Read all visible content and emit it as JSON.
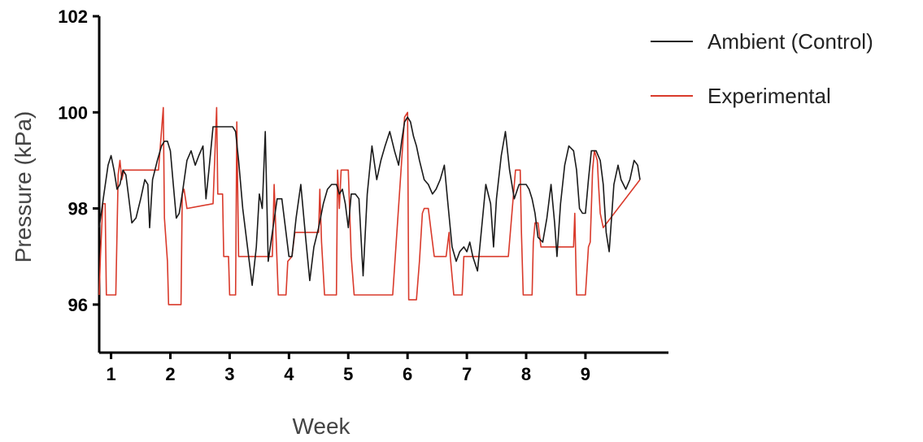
{
  "chart_data": {
    "type": "line",
    "xlabel": "Week",
    "ylabel": "Pressure (kPa)",
    "ylim": [
      95,
      102
    ],
    "xlim": [
      0.8,
      10.4
    ],
    "yticks": [
      96,
      98,
      100,
      102
    ],
    "xticks": [
      {
        "value": 1,
        "label": "1"
      },
      {
        "value": 2,
        "label": "2"
      },
      {
        "value": 3,
        "label": "3"
      },
      {
        "value": 4,
        "label": "4"
      },
      {
        "value": 5,
        "label": "5"
      },
      {
        "value": 6,
        "label": "6"
      },
      {
        "value": 7,
        "label": "7"
      },
      {
        "value": 8,
        "label": "8"
      },
      {
        "value": 9,
        "label": "9"
      }
    ],
    "grid": false,
    "legend_position": "top-right",
    "series": [
      {
        "name": "Ambient (Control)",
        "color": "#1a1a1a",
        "points": [
          [
            0.8,
            97.6
          ],
          [
            0.88,
            98.3
          ],
          [
            0.95,
            98.9
          ],
          [
            1.0,
            99.1
          ],
          [
            1.05,
            98.8
          ],
          [
            1.1,
            98.4
          ],
          [
            1.15,
            98.5
          ],
          [
            1.2,
            98.8
          ],
          [
            1.25,
            98.7
          ],
          [
            1.3,
            98.2
          ],
          [
            1.35,
            97.7
          ],
          [
            1.42,
            97.8
          ],
          [
            1.5,
            98.2
          ],
          [
            1.57,
            98.6
          ],
          [
            1.62,
            98.5
          ],
          [
            1.65,
            97.6
          ],
          [
            1.7,
            98.6
          ],
          [
            1.78,
            99.0
          ],
          [
            1.85,
            99.3
          ],
          [
            1.9,
            99.4
          ],
          [
            1.95,
            99.4
          ],
          [
            2.0,
            99.2
          ],
          [
            2.05,
            98.5
          ],
          [
            2.1,
            97.8
          ],
          [
            2.15,
            97.9
          ],
          [
            2.2,
            98.3
          ],
          [
            2.28,
            99.0
          ],
          [
            2.35,
            99.2
          ],
          [
            2.42,
            98.9
          ],
          [
            2.48,
            99.1
          ],
          [
            2.55,
            99.3
          ],
          [
            2.6,
            98.2
          ],
          [
            2.65,
            98.8
          ],
          [
            2.72,
            99.7
          ],
          [
            2.8,
            99.7
          ],
          [
            2.9,
            99.7
          ],
          [
            3.0,
            99.7
          ],
          [
            3.05,
            99.7
          ],
          [
            3.1,
            99.6
          ],
          [
            3.15,
            99.0
          ],
          [
            3.22,
            98.0
          ],
          [
            3.3,
            97.2
          ],
          [
            3.38,
            96.4
          ],
          [
            3.45,
            97.2
          ],
          [
            3.5,
            98.3
          ],
          [
            3.55,
            98.0
          ],
          [
            3.6,
            99.6
          ],
          [
            3.65,
            96.9
          ],
          [
            3.72,
            97.5
          ],
          [
            3.8,
            98.2
          ],
          [
            3.88,
            98.2
          ],
          [
            3.95,
            97.5
          ],
          [
            4.0,
            97.0
          ],
          [
            4.05,
            97.0
          ],
          [
            4.12,
            97.8
          ],
          [
            4.2,
            98.5
          ],
          [
            4.28,
            97.4
          ],
          [
            4.35,
            96.5
          ],
          [
            4.42,
            97.2
          ],
          [
            4.5,
            97.6
          ],
          [
            4.58,
            98.1
          ],
          [
            4.65,
            98.4
          ],
          [
            4.72,
            98.5
          ],
          [
            4.8,
            98.5
          ],
          [
            4.85,
            98.3
          ],
          [
            4.9,
            98.4
          ],
          [
            4.95,
            98.1
          ],
          [
            5.0,
            97.6
          ],
          [
            5.05,
            98.3
          ],
          [
            5.12,
            98.3
          ],
          [
            5.18,
            98.2
          ],
          [
            5.25,
            96.6
          ],
          [
            5.32,
            98.3
          ],
          [
            5.4,
            99.3
          ],
          [
            5.48,
            98.6
          ],
          [
            5.55,
            99.0
          ],
          [
            5.62,
            99.3
          ],
          [
            5.7,
            99.6
          ],
          [
            5.78,
            99.2
          ],
          [
            5.85,
            98.9
          ],
          [
            5.9,
            99.4
          ],
          [
            5.95,
            99.8
          ],
          [
            6.0,
            99.9
          ],
          [
            6.05,
            99.8
          ],
          [
            6.1,
            99.5
          ],
          [
            6.15,
            99.3
          ],
          [
            6.2,
            99.0
          ],
          [
            6.28,
            98.6
          ],
          [
            6.35,
            98.5
          ],
          [
            6.42,
            98.3
          ],
          [
            6.48,
            98.4
          ],
          [
            6.55,
            98.6
          ],
          [
            6.62,
            98.9
          ],
          [
            6.68,
            98.1
          ],
          [
            6.75,
            97.2
          ],
          [
            6.82,
            96.9
          ],
          [
            6.88,
            97.1
          ],
          [
            6.95,
            97.2
          ],
          [
            7.0,
            97.1
          ],
          [
            7.05,
            97.3
          ],
          [
            7.1,
            97.0
          ],
          [
            7.18,
            96.7
          ],
          [
            7.25,
            97.6
          ],
          [
            7.32,
            98.5
          ],
          [
            7.4,
            98.1
          ],
          [
            7.45,
            97.2
          ],
          [
            7.5,
            98.2
          ],
          [
            7.58,
            99.1
          ],
          [
            7.65,
            99.6
          ],
          [
            7.72,
            98.8
          ],
          [
            7.8,
            98.2
          ],
          [
            7.88,
            98.5
          ],
          [
            7.95,
            98.5
          ],
          [
            8.0,
            98.5
          ],
          [
            8.05,
            98.4
          ],
          [
            8.1,
            98.2
          ],
          [
            8.15,
            97.9
          ],
          [
            8.2,
            97.4
          ],
          [
            8.28,
            97.3
          ],
          [
            8.35,
            97.8
          ],
          [
            8.42,
            98.5
          ],
          [
            8.48,
            97.7
          ],
          [
            8.52,
            97.0
          ],
          [
            8.58,
            98.1
          ],
          [
            8.65,
            98.9
          ],
          [
            8.72,
            99.3
          ],
          [
            8.8,
            99.2
          ],
          [
            8.85,
            98.8
          ],
          [
            8.9,
            98.0
          ],
          [
            8.95,
            97.9
          ],
          [
            9.0,
            97.9
          ],
          [
            9.05,
            98.6
          ],
          [
            9.1,
            99.2
          ],
          [
            9.18,
            99.2
          ],
          [
            9.25,
            99.0
          ],
          [
            9.3,
            98.5
          ],
          [
            9.35,
            97.5
          ],
          [
            9.4,
            97.1
          ],
          [
            9.48,
            98.5
          ],
          [
            9.55,
            98.9
          ],
          [
            9.6,
            98.6
          ],
          [
            9.68,
            98.4
          ],
          [
            9.75,
            98.6
          ],
          [
            9.82,
            99.0
          ],
          [
            9.88,
            98.9
          ],
          [
            9.92,
            98.6
          ]
        ]
      },
      {
        "name": "Experimental",
        "color": "#d93a2b",
        "points": [
          [
            0.8,
            96.2
          ],
          [
            0.82,
            97.0
          ],
          [
            0.86,
            98.1
          ],
          [
            0.9,
            98.1
          ],
          [
            0.92,
            96.2
          ],
          [
            1.05,
            96.2
          ],
          [
            1.08,
            96.2
          ],
          [
            1.12,
            98.7
          ],
          [
            1.15,
            99.0
          ],
          [
            1.18,
            98.6
          ],
          [
            1.22,
            98.8
          ],
          [
            1.25,
            98.8
          ],
          [
            1.8,
            98.8
          ],
          [
            1.88,
            100.1
          ],
          [
            1.9,
            97.8
          ],
          [
            1.95,
            96.9
          ],
          [
            1.97,
            96.0
          ],
          [
            2.05,
            96.0
          ],
          [
            2.18,
            96.0
          ],
          [
            2.2,
            98.3
          ],
          [
            2.23,
            98.4
          ],
          [
            2.28,
            98.0
          ],
          [
            2.72,
            98.1
          ],
          [
            2.78,
            100.1
          ],
          [
            2.8,
            98.3
          ],
          [
            2.88,
            98.3
          ],
          [
            2.9,
            97.0
          ],
          [
            2.98,
            97.0
          ],
          [
            3.0,
            96.2
          ],
          [
            3.1,
            96.2
          ],
          [
            3.12,
            99.8
          ],
          [
            3.15,
            97.0
          ],
          [
            3.72,
            97.0
          ],
          [
            3.75,
            98.5
          ],
          [
            3.78,
            97.5
          ],
          [
            3.82,
            96.2
          ],
          [
            3.95,
            96.2
          ],
          [
            3.98,
            96.9
          ],
          [
            4.05,
            97.0
          ],
          [
            4.1,
            97.5
          ],
          [
            4.5,
            97.5
          ],
          [
            4.52,
            98.4
          ],
          [
            4.55,
            97.3
          ],
          [
            4.6,
            96.2
          ],
          [
            4.8,
            96.2
          ],
          [
            4.82,
            98.8
          ],
          [
            4.85,
            98.0
          ],
          [
            4.88,
            98.8
          ],
          [
            5.0,
            98.8
          ],
          [
            5.05,
            97.0
          ],
          [
            5.1,
            96.2
          ],
          [
            5.75,
            96.2
          ],
          [
            5.95,
            99.9
          ],
          [
            6.0,
            100.0
          ],
          [
            6.02,
            96.1
          ],
          [
            6.15,
            96.1
          ],
          [
            6.2,
            96.9
          ],
          [
            6.25,
            97.9
          ],
          [
            6.28,
            98.0
          ],
          [
            6.35,
            98.0
          ],
          [
            6.4,
            97.5
          ],
          [
            6.45,
            97.0
          ],
          [
            6.65,
            97.0
          ],
          [
            6.7,
            97.5
          ],
          [
            6.72,
            97.0
          ],
          [
            6.78,
            96.2
          ],
          [
            6.92,
            96.2
          ],
          [
            6.95,
            97.0
          ],
          [
            7.05,
            97.0
          ],
          [
            7.1,
            97.0
          ],
          [
            7.7,
            97.0
          ],
          [
            7.82,
            98.8
          ],
          [
            7.9,
            98.8
          ],
          [
            7.92,
            97.5
          ],
          [
            7.95,
            96.2
          ],
          [
            8.1,
            96.2
          ],
          [
            8.12,
            97.3
          ],
          [
            8.15,
            97.7
          ],
          [
            8.2,
            97.7
          ],
          [
            8.25,
            97.2
          ],
          [
            8.8,
            97.2
          ],
          [
            8.82,
            97.9
          ],
          [
            8.85,
            96.2
          ],
          [
            9.0,
            96.2
          ],
          [
            9.05,
            97.2
          ],
          [
            9.08,
            97.3
          ],
          [
            9.12,
            98.8
          ],
          [
            9.15,
            99.2
          ],
          [
            9.2,
            99.0
          ],
          [
            9.22,
            98.5
          ],
          [
            9.25,
            97.9
          ],
          [
            9.3,
            97.6
          ],
          [
            9.92,
            98.6
          ]
        ]
      }
    ]
  }
}
